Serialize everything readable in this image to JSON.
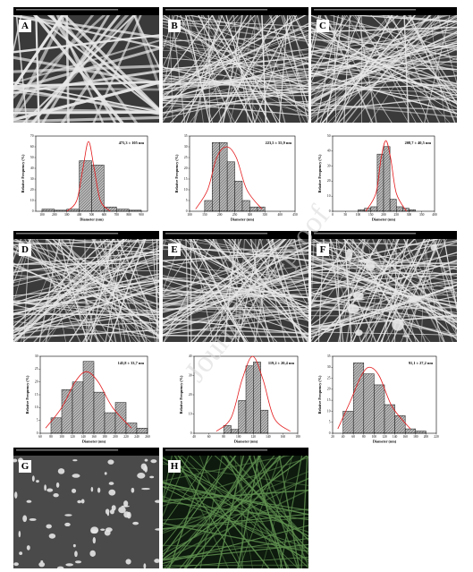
{
  "panel_labels": [
    "A",
    "B",
    "C",
    "D",
    "E",
    "F",
    "G",
    "H"
  ],
  "watermark": "Journal Pre-proof",
  "chart_data": [
    {
      "type": "histogram",
      "annotation": "475,3 ± 105 nm",
      "x_label": "Diameter (nm)",
      "y_label": "Relative Frequency (%)",
      "bins": [
        100,
        200,
        300,
        400,
        500,
        600,
        700,
        800,
        900
      ],
      "values": [
        2,
        1,
        2,
        47,
        43,
        4,
        2,
        1
      ],
      "color": "#8c8c8c",
      "xlim": [
        50,
        950
      ],
      "xticks": [
        100,
        200,
        300,
        400,
        500,
        600,
        700,
        800,
        900
      ],
      "ylim": [
        0,
        70
      ],
      "yticks": [
        0,
        10,
        20,
        30,
        40,
        50,
        60,
        70
      ],
      "fit": {
        "color": "#e41a1c",
        "x": [
          300,
          380,
          430,
          475,
          520,
          570,
          650
        ],
        "y": [
          0,
          10,
          40,
          65,
          40,
          10,
          0
        ]
      }
    },
    {
      "type": "histogram",
      "annotation": "223,5 ± 55,9 nm",
      "x_label": "Diameter (nm)",
      "y_label": "Relative Frequency (%)",
      "bins": [
        150,
        175,
        200,
        225,
        250,
        275,
        300,
        325,
        350
      ],
      "values": [
        5,
        32,
        32,
        23,
        14,
        5,
        2,
        2
      ],
      "color": "#8c8c8c",
      "xlim": [
        100,
        450
      ],
      "xticks": [
        100,
        150,
        200,
        250,
        300,
        350,
        400,
        450
      ],
      "ylim": [
        0,
        35
      ],
      "yticks": [
        0,
        5,
        10,
        15,
        20,
        25,
        30,
        35
      ],
      "fit": {
        "color": "#e41a1c",
        "x": [
          120,
          160,
          190,
          223,
          255,
          290,
          340
        ],
        "y": [
          1,
          10,
          25,
          30,
          25,
          10,
          1
        ]
      }
    },
    {
      "type": "histogram",
      "annotation": "208,7 ± 40,5 nm",
      "x_label": "Diameter (nm)",
      "y_label": "Relative Frequency (%)",
      "bins": [
        100,
        125,
        150,
        175,
        200,
        225,
        250,
        275,
        300,
        325
      ],
      "values": [
        1,
        2,
        3,
        38,
        43,
        8,
        3,
        2,
        1
      ],
      "color": "#8c8c8c",
      "xlim": [
        0,
        400
      ],
      "xticks": [
        0,
        50,
        100,
        150,
        200,
        250,
        300,
        350,
        400
      ],
      "ylim": [
        0,
        50
      ],
      "yticks": [
        0,
        10,
        20,
        30,
        40,
        50
      ],
      "fit": {
        "color": "#e41a1c",
        "x": [
          130,
          170,
          190,
          209,
          228,
          250,
          290
        ],
        "y": [
          0,
          12,
          35,
          47,
          35,
          12,
          0
        ]
      }
    },
    {
      "type": "histogram",
      "annotation": "145,8 ± 33,7 nm",
      "x_label": "Diameter (nm)",
      "y_label": "Relative Frequency (%)",
      "bins": [
        80,
        100,
        120,
        140,
        160,
        180,
        200,
        220,
        240,
        260
      ],
      "values": [
        6,
        17,
        20,
        28,
        16,
        8,
        12,
        4,
        2
      ],
      "color": "#8c8c8c",
      "xlim": [
        60,
        260
      ],
      "xticks": [
        60,
        80,
        100,
        120,
        140,
        160,
        180,
        200,
        220,
        240,
        260
      ],
      "ylim": [
        0,
        30
      ],
      "yticks": [
        0,
        5,
        10,
        15,
        20,
        25,
        30
      ],
      "fit": {
        "color": "#e41a1c",
        "x": [
          70,
          100,
          125,
          146,
          168,
          195,
          230
        ],
        "y": [
          2,
          10,
          20,
          24,
          20,
          10,
          2
        ]
      }
    },
    {
      "type": "histogram",
      "annotation": "119,2 ± 20,4 nm",
      "x_label": "Diameter (nm)",
      "y_label": "Relative Frequency (%)",
      "bins": [
        80,
        90,
        100,
        110,
        120,
        130,
        140
      ],
      "values": [
        4,
        2,
        17,
        35,
        37,
        12
      ],
      "color": "#8c8c8c",
      "xlim": [
        40,
        180
      ],
      "xticks": [
        40,
        60,
        80,
        100,
        120,
        140,
        160,
        180
      ],
      "ylim": [
        0,
        40
      ],
      "yticks": [
        0,
        10,
        20,
        30,
        40
      ],
      "fit": {
        "color": "#e41a1c",
        "x": [
          70,
          90,
          105,
          119,
          133,
          148,
          170
        ],
        "y": [
          1,
          8,
          28,
          40,
          28,
          8,
          1
        ]
      }
    },
    {
      "type": "histogram",
      "annotation": "91,1 ± 27,2 nm",
      "x_label": "Diameter (nm)",
      "y_label": "Relative Frequency (%)",
      "bins": [
        40,
        60,
        80,
        100,
        120,
        140,
        160,
        180,
        200
      ],
      "values": [
        10,
        32,
        27,
        22,
        13,
        8,
        2,
        1
      ],
      "color": "#8c8c8c",
      "xlim": [
        20,
        220
      ],
      "xticks": [
        20,
        40,
        60,
        80,
        100,
        120,
        140,
        160,
        180,
        200,
        220
      ],
      "ylim": [
        0,
        35
      ],
      "yticks": [
        0,
        5,
        10,
        15,
        20,
        25,
        30,
        35
      ],
      "fit": {
        "color": "#e41a1c",
        "x": [
          30,
          55,
          75,
          91,
          110,
          135,
          170
        ],
        "y": [
          2,
          15,
          26,
          30,
          26,
          12,
          2
        ]
      }
    }
  ]
}
